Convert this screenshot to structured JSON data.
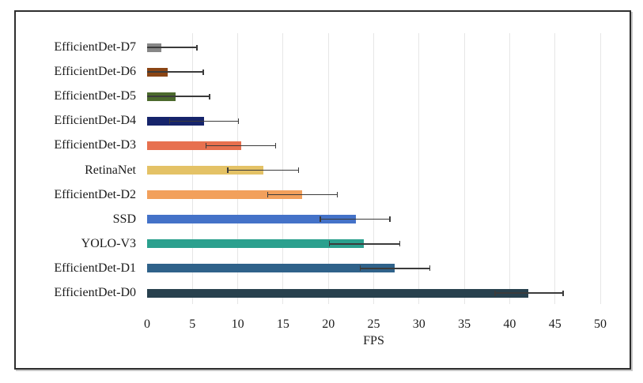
{
  "figure": {
    "background": "#ffffff",
    "frame_border_color": "#2e2e2e",
    "gridline_color": "#e6e6e6",
    "error_bar_color": "#3b3b3b",
    "text_color": "#1b1b1b"
  },
  "chart_data": {
    "type": "bar",
    "orientation": "horizontal",
    "xlabel": "FPS",
    "xlim": [
      0,
      50
    ],
    "xticks": [
      0,
      5,
      10,
      15,
      20,
      25,
      30,
      35,
      40,
      45,
      50
    ],
    "grid": true,
    "legend": false,
    "error_bars": true,
    "bars": [
      {
        "label": "EfficientDet-D7",
        "value": 1.6,
        "error_low": null,
        "error_high": 5.5,
        "color": "#878787"
      },
      {
        "label": "EfficientDet-D6",
        "value": 2.3,
        "error_low": null,
        "error_high": 6.2,
        "color": "#8b4514"
      },
      {
        "label": "EfficientDet-D5",
        "value": 3.1,
        "error_low": null,
        "error_high": 6.9,
        "color": "#4c6a2d"
      },
      {
        "label": "EfficientDet-D4",
        "value": 6.3,
        "error_low": 2.5,
        "error_high": 10.1,
        "color": "#16246b"
      },
      {
        "label": "EfficientDet-D3",
        "value": 10.4,
        "error_low": 6.5,
        "error_high": 14.2,
        "color": "#e7704f"
      },
      {
        "label": "RetinaNet",
        "value": 12.8,
        "error_low": 8.9,
        "error_high": 16.7,
        "color": "#e4c266"
      },
      {
        "label": "EfficientDet-D2",
        "value": 17.1,
        "error_low": 13.3,
        "error_high": 21.0,
        "color": "#f2a05c"
      },
      {
        "label": "SSD",
        "value": 23.0,
        "error_low": 19.1,
        "error_high": 26.8,
        "color": "#4472c8"
      },
      {
        "label": "YOLO-V3",
        "value": 23.9,
        "error_low": 20.1,
        "error_high": 27.9,
        "color": "#2ba08e"
      },
      {
        "label": "EfficientDet-D1",
        "value": 27.3,
        "error_low": 23.5,
        "error_high": 31.2,
        "color": "#2f628a"
      },
      {
        "label": "EfficientDet-D0",
        "value": 42.1,
        "error_low": 38.4,
        "error_high": 45.9,
        "color": "#28414e"
      }
    ]
  }
}
